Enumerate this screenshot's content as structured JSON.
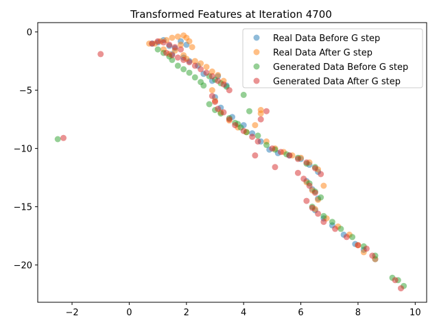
{
  "chart_data": {
    "type": "scatter",
    "title": "Transformed Features at Iteration 4700",
    "xlabel": "",
    "ylabel": "",
    "xlim": [
      -3.2,
      10.4
    ],
    "ylim": [
      -23.2,
      0.8
    ],
    "xticks": [
      -2,
      0,
      2,
      4,
      6,
      8,
      10
    ],
    "yticks": [
      0,
      -5,
      -10,
      -15,
      -20
    ],
    "grid": false,
    "legend_position": "top-right",
    "series": [
      {
        "name": "Real Data Before G step",
        "color": "#1f77b4",
        "x": [
          0.8,
          1.0,
          1.2,
          1.4,
          1.6,
          1.8,
          2.0,
          1.5,
          1.9,
          2.1,
          2.4,
          2.6,
          2.9,
          3.1,
          3.4,
          3.0,
          3.2,
          3.6,
          4.0,
          4.3,
          4.6,
          4.9,
          5.2,
          5.6,
          6.0,
          6.3,
          6.6,
          6.2,
          6.4,
          6.6,
          6.5,
          6.8,
          7.1,
          7.5,
          7.9,
          8.2,
          8.6
        ],
        "y": [
          -1.0,
          -0.9,
          -0.7,
          -1.2,
          -1.4,
          -0.8,
          -1.1,
          -1.9,
          -2.2,
          -2.5,
          -2.9,
          -3.6,
          -4.2,
          -3.8,
          -4.6,
          -5.6,
          -6.5,
          -7.3,
          -8.0,
          -8.7,
          -9.4,
          -10.1,
          -10.4,
          -10.6,
          -10.9,
          -11.4,
          -12.0,
          -12.8,
          -13.5,
          -14.3,
          -15.3,
          -16.0,
          -16.6,
          -17.4,
          -18.2,
          -18.7,
          -19.5
        ]
      },
      {
        "name": "Real Data After G step",
        "color": "#ff7f0e",
        "x": [
          0.7,
          0.9,
          1.1,
          1.3,
          1.5,
          1.7,
          1.9,
          2.0,
          2.1,
          1.8,
          2.2,
          1.6,
          1.4,
          1.2,
          1.9,
          2.0,
          2.3,
          2.5,
          2.7,
          2.9,
          3.1,
          3.3,
          2.9,
          3.0,
          3.2,
          3.5,
          3.8,
          4.1,
          4.4,
          4.6,
          4.6,
          4.8,
          5.1,
          5.4,
          5.7,
          6.0,
          6.3,
          6.6,
          6.8,
          6.2,
          6.4,
          6.6,
          6.5,
          6.9,
          7.3,
          7.7,
          8.0,
          8.2,
          8.6
        ],
        "y": [
          -1.0,
          -1.0,
          -0.8,
          -0.7,
          -0.5,
          -0.4,
          -0.3,
          -0.5,
          -0.8,
          -1.1,
          -1.3,
          -1.6,
          -1.9,
          -1.5,
          -2.0,
          -2.3,
          -2.5,
          -2.7,
          -3.0,
          -3.4,
          -3.7,
          -4.2,
          -5.0,
          -5.9,
          -6.9,
          -7.6,
          -8.2,
          -8.6,
          -8.0,
          -7.0,
          -6.7,
          -9.4,
          -10.0,
          -10.3,
          -10.6,
          -10.8,
          -11.2,
          -11.8,
          -13.2,
          -12.9,
          -13.6,
          -14.4,
          -15.2,
          -16.0,
          -16.7,
          -17.4,
          -18.3,
          -18.9,
          -19.5
        ]
      },
      {
        "name": "Generated Data Before G step",
        "color": "#2ca02c",
        "x": [
          -2.5,
          1.0,
          1.2,
          1.4,
          1.5,
          1.7,
          1.9,
          2.1,
          2.3,
          2.5,
          2.6,
          2.8,
          3.0,
          3.2,
          3.4,
          2.8,
          3.0,
          3.2,
          3.5,
          3.7,
          3.9,
          4.1,
          4.0,
          3.8,
          4.2,
          4.5,
          4.8,
          5.1,
          5.5,
          5.9,
          6.2,
          6.5,
          6.3,
          6.5,
          6.7,
          6.4,
          6.8,
          7.1,
          7.4,
          7.8,
          8.2,
          8.6,
          9.2,
          9.4,
          9.6
        ],
        "y": [
          -9.2,
          -1.5,
          -1.8,
          -2.1,
          -2.4,
          -2.9,
          -3.2,
          -3.5,
          -3.9,
          -4.3,
          -4.6,
          -3.8,
          -4.1,
          -4.4,
          -4.7,
          -6.2,
          -6.7,
          -7.0,
          -7.4,
          -7.8,
          -8.2,
          -8.6,
          -5.4,
          -7.9,
          -6.8,
          -8.9,
          -9.7,
          -10.1,
          -10.5,
          -10.8,
          -11.3,
          -11.6,
          -13.0,
          -13.7,
          -14.2,
          -15.0,
          -15.8,
          -16.3,
          -16.9,
          -17.6,
          -18.4,
          -19.2,
          -21.1,
          -21.3,
          -21.8
        ]
      },
      {
        "name": "Generated Data After G step",
        "color": "#d62728",
        "x": [
          -2.3,
          -1.0,
          0.8,
          1.0,
          1.2,
          1.4,
          1.6,
          1.8,
          1.3,
          1.5,
          1.7,
          1.9,
          2.1,
          2.3,
          2.5,
          2.7,
          2.9,
          3.1,
          3.3,
          3.5,
          2.9,
          3.0,
          3.1,
          3.3,
          3.5,
          3.7,
          4.0,
          4.3,
          4.5,
          4.4,
          4.6,
          4.8,
          5.0,
          5.3,
          5.6,
          5.9,
          6.2,
          6.5,
          6.7,
          5.1,
          5.9,
          6.1,
          6.3,
          6.5,
          6.2,
          6.4,
          6.6,
          6.8,
          7.2,
          7.6,
          8.0,
          8.3,
          8.5,
          9.3,
          9.5
        ],
        "y": [
          -9.1,
          -1.9,
          -1.0,
          -0.8,
          -0.9,
          -1.1,
          -1.3,
          -1.5,
          -1.8,
          -2.0,
          -2.2,
          -2.4,
          -2.6,
          -2.9,
          -3.2,
          -3.5,
          -3.8,
          -4.2,
          -4.5,
          -5.0,
          -5.5,
          -6.0,
          -6.6,
          -6.9,
          -7.5,
          -8.0,
          -8.5,
          -9.0,
          -9.4,
          -10.6,
          -7.5,
          -6.8,
          -10.0,
          -10.3,
          -10.6,
          -10.9,
          -11.2,
          -11.7,
          -12.2,
          -11.6,
          -12.1,
          -12.6,
          -13.2,
          -13.8,
          -14.5,
          -15.1,
          -15.6,
          -16.3,
          -16.9,
          -17.6,
          -18.3,
          -18.6,
          -19.2,
          -21.3,
          -22.0
        ]
      }
    ]
  }
}
